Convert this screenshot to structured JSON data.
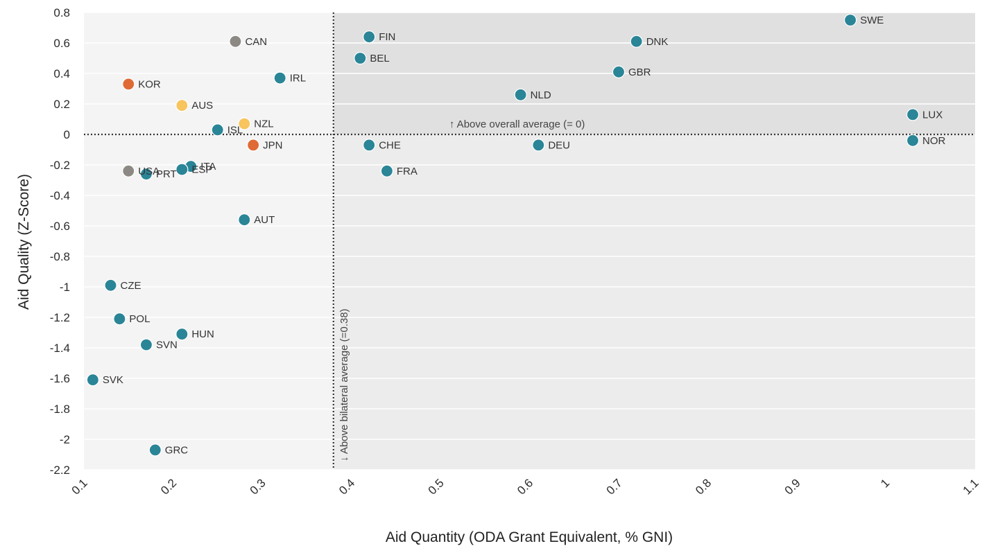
{
  "chart_data": {
    "type": "scatter",
    "xlabel": "Aid Quantity (ODA Grant Equivalent, % GNI)",
    "ylabel": "Aid Quality (Z-Score)",
    "xlim": [
      0.1,
      1.1
    ],
    "ylim": [
      -2.2,
      0.8
    ],
    "x_ticks": [
      0.1,
      0.2,
      0.3,
      0.4,
      0.5,
      0.6,
      0.7,
      0.8,
      0.9,
      1,
      1.1
    ],
    "y_ticks": [
      0.8,
      0.6,
      0.4,
      0.2,
      0,
      -0.2,
      -0.4,
      -0.6,
      -0.8,
      -1,
      -1.2,
      -1.4,
      -1.6,
      -1.8,
      -2,
      -2.2
    ],
    "grid": "horizontal",
    "reference_lines": {
      "vertical": {
        "x": 0.38,
        "label": "↓ Above bilateral average (=0.38)"
      },
      "horizontal": {
        "y": 0,
        "label": "↑ Above overall average (= 0)"
      }
    },
    "colors": {
      "teal": "#2a8597",
      "gray": "#8c8883",
      "orange": "#df6a36",
      "yellow": "#f7c45e",
      "bg_left": "#f4f4f4",
      "bg_right_low": "#ececec",
      "bg_right_high": "#e0e0e0"
    },
    "points": [
      {
        "label": "SWE",
        "x": 0.96,
        "y": 0.75,
        "color": "teal"
      },
      {
        "label": "DNK",
        "x": 0.72,
        "y": 0.61,
        "color": "teal"
      },
      {
        "label": "FIN",
        "x": 0.42,
        "y": 0.64,
        "color": "teal"
      },
      {
        "label": "BEL",
        "x": 0.41,
        "y": 0.5,
        "color": "teal"
      },
      {
        "label": "GBR",
        "x": 0.7,
        "y": 0.41,
        "color": "teal"
      },
      {
        "label": "NLD",
        "x": 0.59,
        "y": 0.26,
        "color": "teal"
      },
      {
        "label": "LUX",
        "x": 1.03,
        "y": 0.13,
        "color": "teal"
      },
      {
        "label": "NOR",
        "x": 1.03,
        "y": -0.04,
        "color": "teal"
      },
      {
        "label": "CHE",
        "x": 0.42,
        "y": -0.07,
        "color": "teal"
      },
      {
        "label": "DEU",
        "x": 0.61,
        "y": -0.07,
        "color": "teal"
      },
      {
        "label": "FRA",
        "x": 0.44,
        "y": -0.24,
        "color": "teal"
      },
      {
        "label": "CAN",
        "x": 0.27,
        "y": 0.61,
        "color": "gray"
      },
      {
        "label": "IRL",
        "x": 0.32,
        "y": 0.37,
        "color": "teal"
      },
      {
        "label": "KOR",
        "x": 0.15,
        "y": 0.33,
        "color": "orange"
      },
      {
        "label": "AUS",
        "x": 0.21,
        "y": 0.19,
        "color": "yellow"
      },
      {
        "label": "NZL",
        "x": 0.28,
        "y": 0.07,
        "color": "yellow"
      },
      {
        "label": "ISL",
        "x": 0.25,
        "y": 0.03,
        "color": "teal"
      },
      {
        "label": "JPN",
        "x": 0.29,
        "y": -0.07,
        "color": "orange"
      },
      {
        "label": "ITA",
        "x": 0.22,
        "y": -0.21,
        "color": "teal"
      },
      {
        "label": "ESP",
        "x": 0.21,
        "y": -0.23,
        "color": "teal"
      },
      {
        "label": "USA",
        "x": 0.15,
        "y": -0.24,
        "color": "gray"
      },
      {
        "label": "PRT",
        "x": 0.17,
        "y": -0.26,
        "color": "teal"
      },
      {
        "label": "AUT",
        "x": 0.28,
        "y": -0.56,
        "color": "teal"
      },
      {
        "label": "CZE",
        "x": 0.13,
        "y": -0.99,
        "color": "teal"
      },
      {
        "label": "POL",
        "x": 0.14,
        "y": -1.21,
        "color": "teal"
      },
      {
        "label": "HUN",
        "x": 0.21,
        "y": -1.31,
        "color": "teal"
      },
      {
        "label": "SVN",
        "x": 0.17,
        "y": -1.38,
        "color": "teal"
      },
      {
        "label": "SVK",
        "x": 0.11,
        "y": -1.61,
        "color": "teal"
      },
      {
        "label": "GRC",
        "x": 0.18,
        "y": -2.07,
        "color": "teal"
      }
    ]
  }
}
